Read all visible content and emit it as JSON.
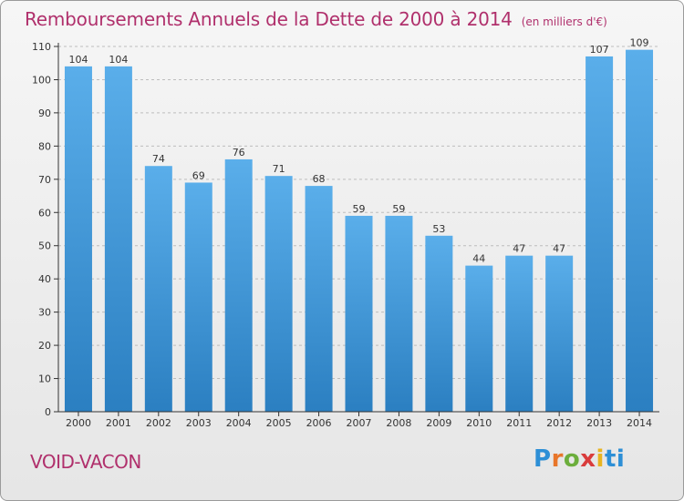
{
  "title": "Remboursements Annuels de la Dette de 2000 à 2014",
  "unit_note": "(en milliers d'€)",
  "town": "VOID-VACON",
  "logo_text": "Proxiti",
  "colors": {
    "title": "#b0306c",
    "bar_light": "#5aaeea",
    "bar_dark": "#2b7fc1",
    "grid": "#bdbdbd",
    "axis": "#333333"
  },
  "chart_data": {
    "type": "bar",
    "title": "Remboursements Annuels de la Dette de 2000 à 2014",
    "subtitle": "(en milliers d'€)",
    "xlabel": "",
    "ylabel": "",
    "categories": [
      "2000",
      "2001",
      "2002",
      "2003",
      "2004",
      "2005",
      "2006",
      "2007",
      "2008",
      "2009",
      "2010",
      "2011",
      "2012",
      "2013",
      "2014"
    ],
    "values": [
      104,
      104,
      74,
      69,
      76,
      71,
      68,
      59,
      59,
      53,
      44,
      47,
      47,
      107,
      109
    ],
    "ylim": [
      0,
      110
    ],
    "yticks": [
      0,
      10,
      20,
      30,
      40,
      50,
      60,
      70,
      80,
      90,
      100,
      110
    ],
    "grid": true,
    "grid_style": "dashed horizontal",
    "data_labels": true,
    "legend": "none"
  }
}
